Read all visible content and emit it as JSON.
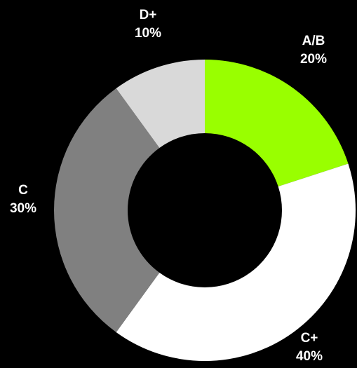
{
  "chart_data": {
    "type": "donut",
    "categories": [
      "A/B",
      "C+",
      "C",
      "D+"
    ],
    "values": [
      20,
      40,
      30,
      10
    ],
    "value_labels": [
      "20%",
      "40%",
      "30%",
      "10%"
    ],
    "colors": [
      "#99ff00",
      "#ffffff",
      "#808080",
      "#d9d9d9"
    ]
  }
}
